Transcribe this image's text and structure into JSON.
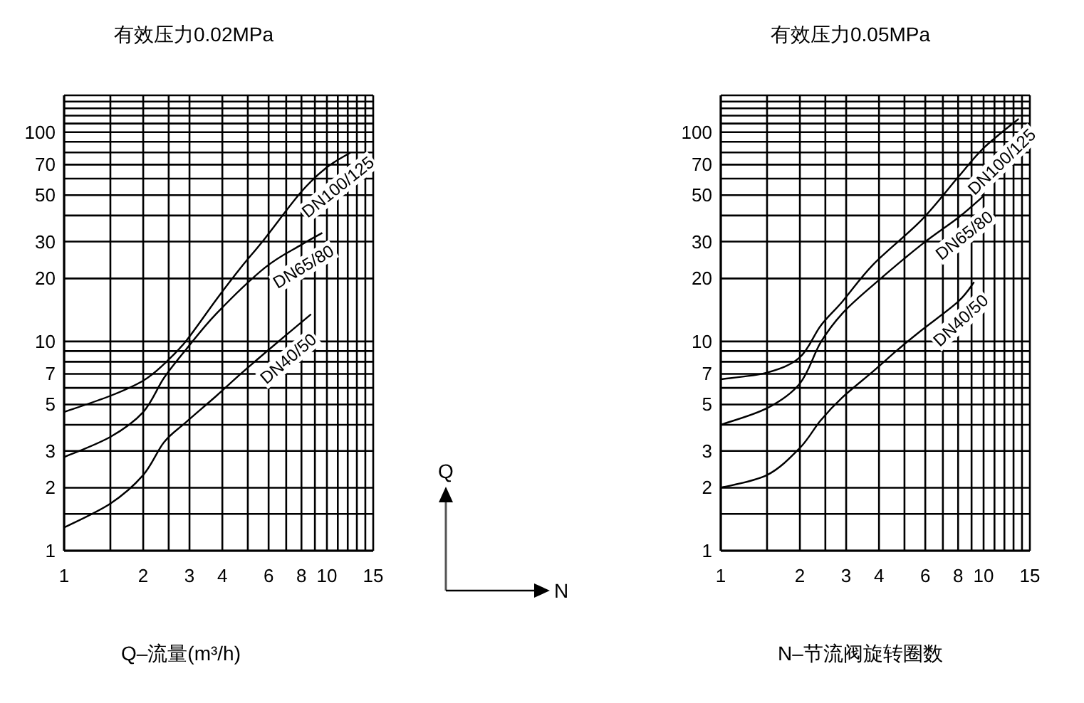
{
  "chart_data": [
    {
      "type": "line",
      "title": "有效压力0.02MPa",
      "annotations": [
        "Q–流量(m³/h)"
      ],
      "log": "xy",
      "grid": true,
      "xlim": [
        1,
        15
      ],
      "ylim": [
        1,
        150
      ],
      "xticks": [
        1,
        {
          "value": 1.5,
          "label": null
        },
        2,
        {
          "value": 2.5,
          "label": null
        },
        3,
        4,
        {
          "value": 5,
          "label": null
        },
        6,
        {
          "value": 7,
          "label": null
        },
        8,
        {
          "value": 9,
          "label": null
        },
        10,
        {
          "value": 11,
          "label": null
        },
        {
          "value": 12,
          "label": null
        },
        {
          "value": 13,
          "label": null
        },
        {
          "value": 14,
          "label": null
        },
        15
      ],
      "yticks": [
        1,
        {
          "value": 1.5,
          "label": null
        },
        2,
        3,
        {
          "value": 4,
          "label": null
        },
        5,
        {
          "value": 6,
          "label": null
        },
        7,
        {
          "value": 8,
          "label": null
        },
        {
          "value": 9,
          "label": null
        },
        10,
        20,
        30,
        {
          "value": 40,
          "label": null
        },
        50,
        {
          "value": 60,
          "label": null
        },
        70,
        {
          "value": 80,
          "label": null
        },
        {
          "value": 90,
          "label": null
        },
        100,
        {
          "value": 110,
          "label": null
        },
        {
          "value": 120,
          "label": null
        },
        {
          "value": 130,
          "label": null
        },
        {
          "value": 140,
          "label": null
        },
        {
          "value": 150,
          "label": null
        }
      ],
      "series": [
        {
          "name": "DN100/125",
          "color": "#000000",
          "x": [
            1,
            1.5,
            2,
            2.4,
            2.9,
            3.8,
            4.7,
            5.8,
            8,
            10,
            12.3
          ],
          "values": [
            4.6,
            5.5,
            6.5,
            7.8,
            10,
            15.9,
            22.5,
            31,
            52,
            68,
            80
          ]
        },
        {
          "name": "DN65/80",
          "color": "#000000",
          "x": [
            1,
            1.5,
            2,
            2.4,
            2.9,
            3.8,
            5.8,
            8,
            9.6
          ],
          "values": [
            2.8,
            3.5,
            4.6,
            6.7,
            9.1,
            13.6,
            22.5,
            29,
            33
          ]
        },
        {
          "name": "DN40/50",
          "color": "#000000",
          "x": [
            1,
            1.5,
            2,
            2.4,
            2.9,
            3.8,
            4.7,
            5.8,
            8.7
          ],
          "values": [
            1.29,
            1.68,
            2.3,
            3.3,
            4.1,
            5.5,
            7,
            8.8,
            13.5
          ]
        }
      ]
    },
    {
      "type": "line",
      "title": "有效压力0.05MPa",
      "annotations": [
        "N–节流阀旋转圈数"
      ],
      "log": "xy",
      "grid": true,
      "xlim": [
        1,
        15
      ],
      "ylim": [
        1,
        150
      ],
      "xticks": [
        1,
        {
          "value": 1.5,
          "label": null
        },
        2,
        {
          "value": 2.5,
          "label": null
        },
        3,
        4,
        {
          "value": 5,
          "label": null
        },
        6,
        {
          "value": 7,
          "label": null
        },
        8,
        {
          "value": 9,
          "label": null
        },
        10,
        {
          "value": 11,
          "label": null
        },
        {
          "value": 12,
          "label": null
        },
        {
          "value": 13,
          "label": null
        },
        {
          "value": 14,
          "label": null
        },
        15
      ],
      "yticks": [
        1,
        {
          "value": 1.5,
          "label": null
        },
        2,
        3,
        {
          "value": 4,
          "label": null
        },
        5,
        {
          "value": 6,
          "label": null
        },
        7,
        {
          "value": 8,
          "label": null
        },
        {
          "value": 9,
          "label": null
        },
        10,
        20,
        30,
        {
          "value": 40,
          "label": null
        },
        50,
        {
          "value": 60,
          "label": null
        },
        70,
        {
          "value": 80,
          "label": null
        },
        {
          "value": 90,
          "label": null
        },
        100,
        {
          "value": 110,
          "label": null
        },
        {
          "value": 120,
          "label": null
        },
        {
          "value": 130,
          "label": null
        },
        {
          "value": 140,
          "label": null
        },
        {
          "value": 150,
          "label": null
        }
      ],
      "series": [
        {
          "name": "DN100/125",
          "color": "#000000",
          "x": [
            1,
            1.5,
            2,
            2.4,
            2.9,
            3.8,
            5.8,
            8,
            10,
            13.6
          ],
          "values": [
            6.6,
            7.1,
            8.4,
            11.9,
            15.5,
            23.3,
            38,
            61,
            84,
            116
          ]
        },
        {
          "name": "DN65/80",
          "color": "#000000",
          "x": [
            1,
            1.5,
            2,
            2.4,
            2.9,
            3.8,
            5.8,
            8,
            10
          ],
          "values": [
            4,
            4.8,
            6.3,
            9.9,
            13.6,
            18.6,
            29,
            39,
            49.6
          ]
        },
        {
          "name": "DN40/50",
          "color": "#000000",
          "x": [
            1,
            1.5,
            2,
            2.4,
            2.9,
            3.8,
            4.7,
            5.8,
            8,
            9.2
          ],
          "values": [
            2,
            2.3,
            3.1,
            4.2,
            5.4,
            7.2,
            9.1,
            11.3,
            15.5,
            19.2
          ]
        }
      ]
    },
    {
      "type": "other",
      "xlabel": "N",
      "ylabel": "Q"
    }
  ]
}
